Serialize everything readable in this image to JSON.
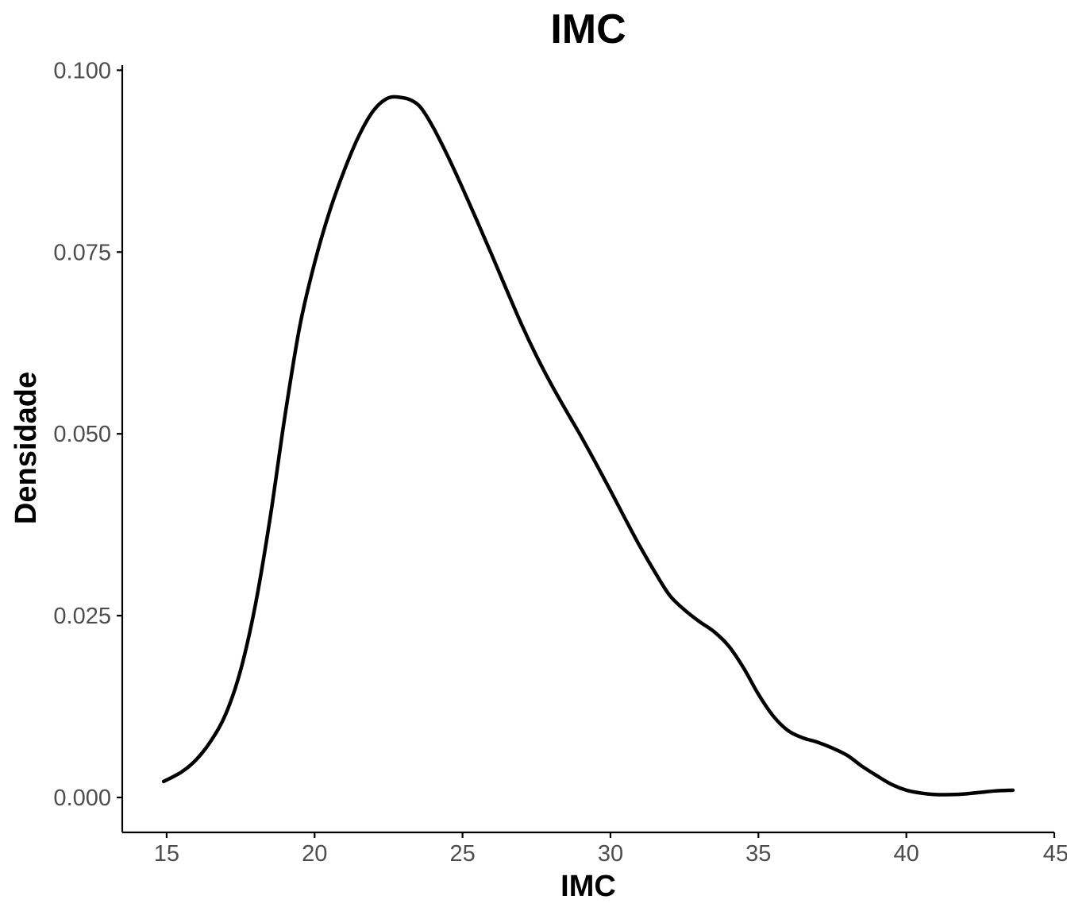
{
  "chart_data": {
    "type": "line",
    "title": "IMC",
    "xlabel": "IMC",
    "ylabel": "Densidade",
    "xlim": [
      13.5,
      45
    ],
    "ylim": [
      -0.0048,
      0.1007
    ],
    "x_ticks": [
      15,
      20,
      25,
      30,
      35,
      40,
      45
    ],
    "x_tick_labels": [
      "15",
      "20",
      "25",
      "30",
      "35",
      "40",
      "45"
    ],
    "y_ticks": [
      0.0,
      0.025,
      0.05,
      0.075,
      0.1
    ],
    "y_tick_labels": [
      "0.000",
      "0.025",
      "0.050",
      "0.075",
      "0.100"
    ],
    "grid": false,
    "series": [
      {
        "name": "Densidade IMC",
        "color": "#000000",
        "x": [
          14.9,
          15.5,
          16.0,
          16.5,
          17.0,
          17.5,
          18.0,
          18.5,
          19.0,
          19.5,
          20.0,
          20.5,
          21.0,
          21.5,
          22.0,
          22.5,
          23.0,
          23.3,
          23.6,
          24.0,
          24.5,
          25.0,
          25.5,
          26.0,
          26.5,
          27.0,
          27.5,
          28.0,
          28.5,
          29.0,
          29.5,
          30.0,
          30.5,
          31.0,
          31.5,
          32.0,
          32.5,
          33.0,
          33.5,
          34.0,
          34.5,
          35.0,
          35.5,
          36.0,
          36.5,
          37.0,
          37.5,
          38.0,
          38.5,
          39.0,
          39.5,
          40.0,
          40.5,
          41.0,
          41.5,
          42.0,
          42.5,
          43.0,
          43.6
        ],
        "values": [
          0.0022,
          0.0035,
          0.0052,
          0.0078,
          0.0115,
          0.0175,
          0.0265,
          0.0385,
          0.0525,
          0.0648,
          0.0735,
          0.0805,
          0.0862,
          0.091,
          0.0945,
          0.0962,
          0.0962,
          0.0958,
          0.0948,
          0.0922,
          0.0882,
          0.0838,
          0.0792,
          0.0745,
          0.0697,
          0.065,
          0.0607,
          0.0568,
          0.0532,
          0.0497,
          0.046,
          0.0422,
          0.0383,
          0.0345,
          0.031,
          0.0278,
          0.0258,
          0.0242,
          0.0228,
          0.0208,
          0.0178,
          0.0142,
          0.0112,
          0.0092,
          0.0082,
          0.0076,
          0.0068,
          0.0058,
          0.0043,
          0.003,
          0.0018,
          0.001,
          0.0006,
          0.0004,
          0.0004,
          0.0005,
          0.0007,
          0.0009,
          0.001
        ]
      }
    ]
  }
}
